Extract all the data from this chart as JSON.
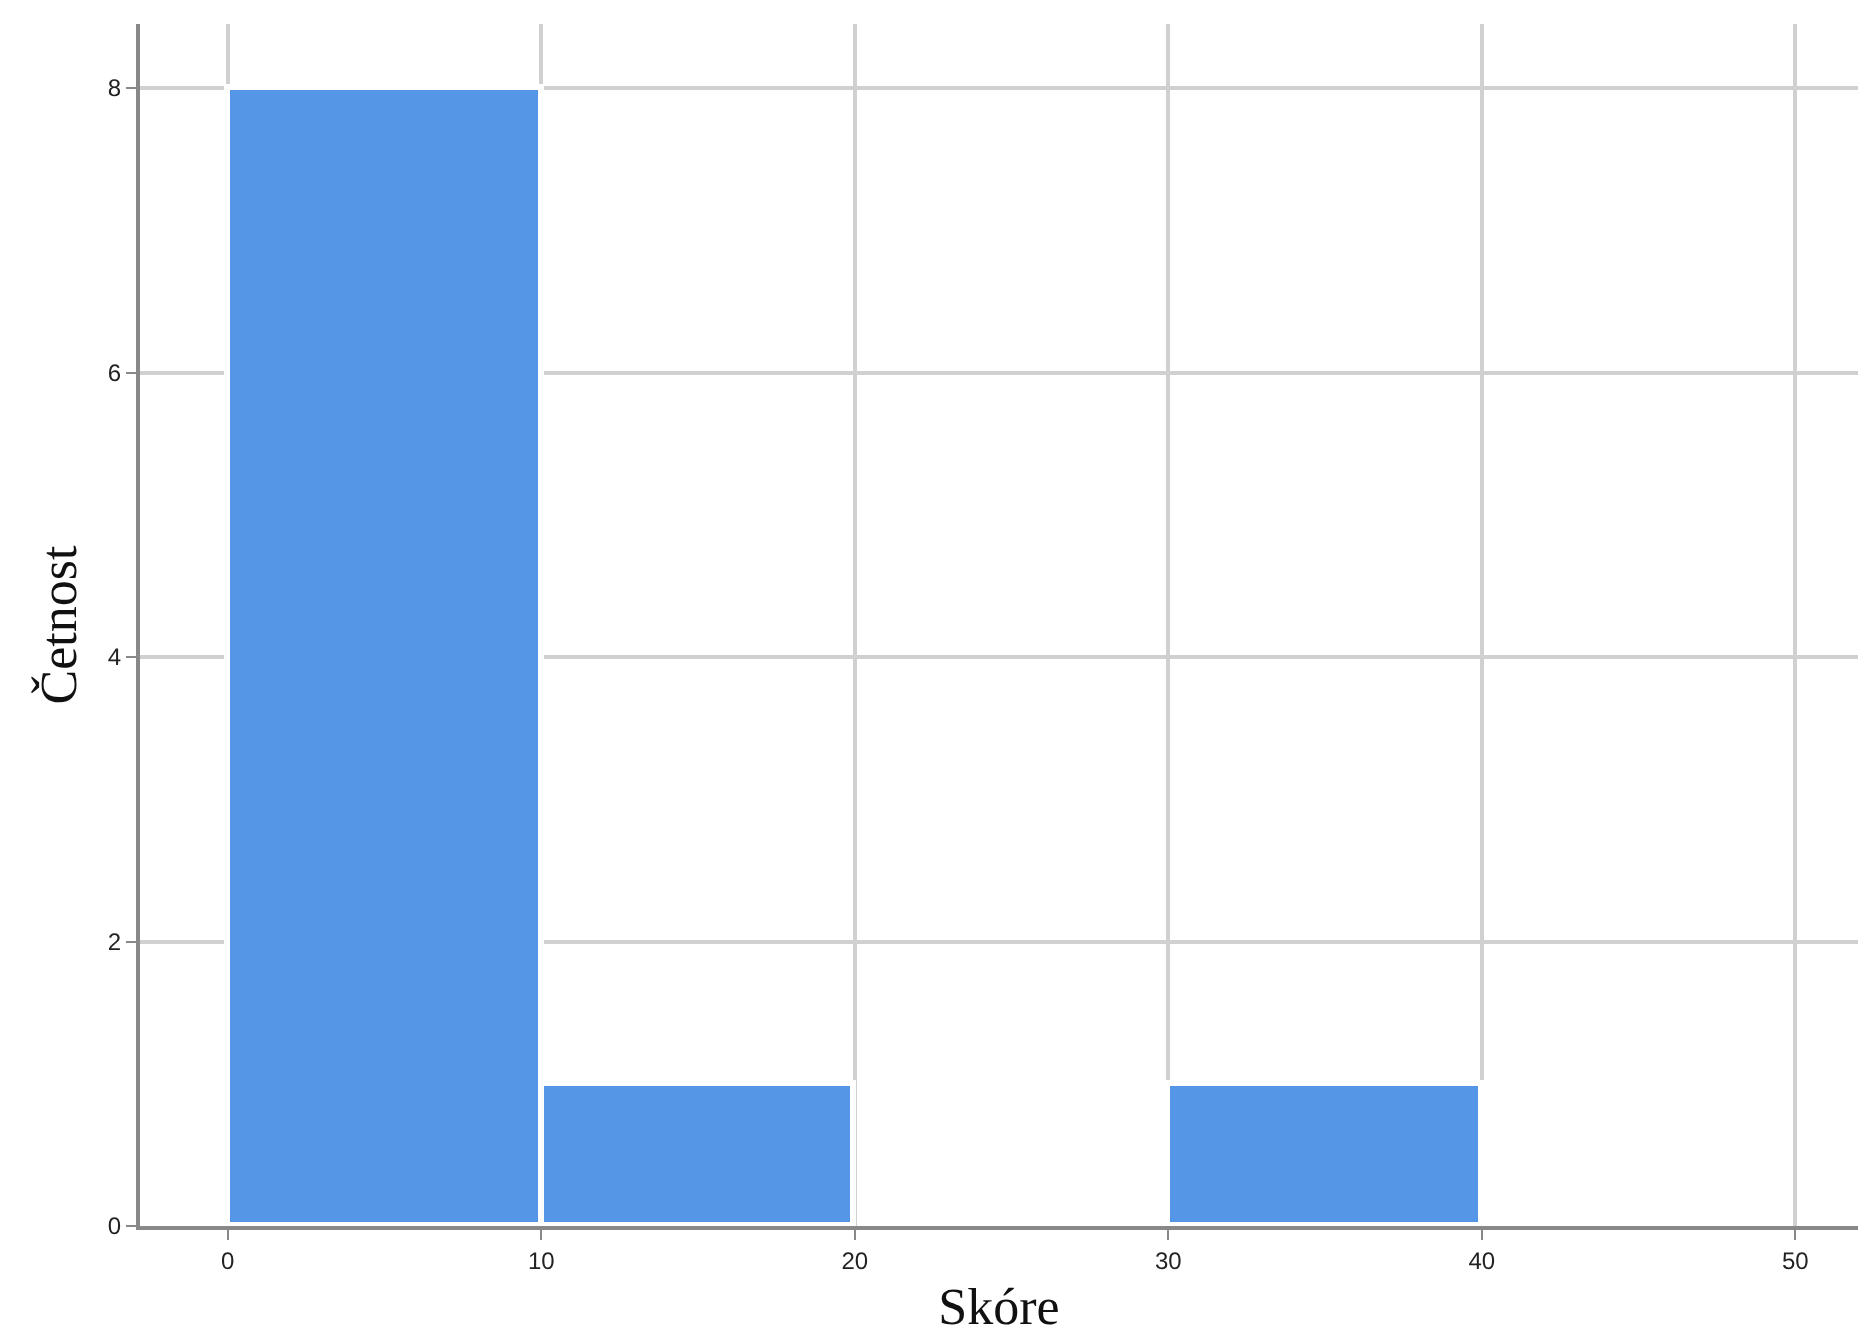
{
  "chart_data": {
    "type": "histogram",
    "xlabel": "Skóre",
    "ylabel": "Četnost",
    "bins": [
      0,
      10,
      20,
      30,
      40
    ],
    "values": [
      8,
      1,
      0,
      1
    ],
    "color": "#5596e6",
    "xlim": [
      -2.8,
      52
    ],
    "xticks": [
      0,
      10,
      20,
      30,
      40,
      50
    ],
    "ylim": [
      0,
      8.45
    ],
    "yticks": [
      0,
      2,
      4,
      6,
      8
    ],
    "grid": true
  }
}
